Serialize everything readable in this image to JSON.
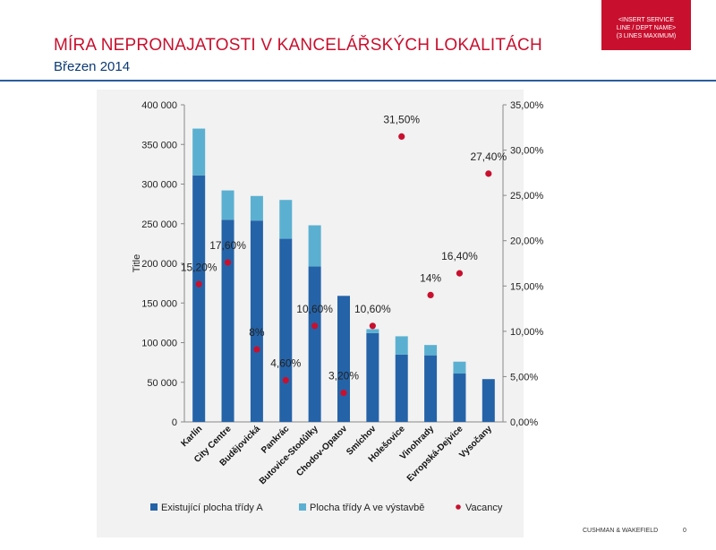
{
  "slide": {
    "title": "MÍRA NEPRONAJATOSTI V KANCELÁŘSKÝCH LOKALITÁCH",
    "subtitle": "Březen 2014",
    "service_box": [
      "<INSERT SERVICE",
      "LINE / DEPT NAME>",
      "(3 LINES MAXIMUM)"
    ],
    "footer_brand": "CUSHMAN & WAKEFIELD",
    "page_number": "0"
  },
  "colors": {
    "title": "#c8102e",
    "subtitle": "#0b3a75",
    "existing": "#2563a8",
    "construction": "#5bb0d1",
    "vacancy": "#c8102e"
  },
  "chart_data": {
    "type": "bar",
    "stacked": true,
    "categories": [
      "Karlín",
      "City Centre",
      "Budějovická",
      "Pankrác",
      "Butovice-Stodůlky",
      "Chodov-Opatov",
      "Smíchov",
      "Holešovice",
      "Vinohrady",
      "Evropská-Dejvice",
      "Vysočany"
    ],
    "series": [
      {
        "name": "Existující plocha třídy A",
        "values": [
          311000,
          255000,
          254000,
          231000,
          196000,
          159000,
          112000,
          85000,
          84000,
          61000,
          54000
        ]
      },
      {
        "name": "Plocha třídy A ve výstavbě",
        "values": [
          59000,
          37000,
          31000,
          49000,
          52000,
          0,
          5000,
          23000,
          13000,
          15000,
          0
        ]
      },
      {
        "name": "Vacancy",
        "axis": "right",
        "kind": "scatter",
        "values": [
          15.2,
          17.6,
          8.0,
          4.6,
          10.6,
          3.2,
          10.6,
          31.5,
          14.0,
          16.4,
          27.4
        ]
      }
    ],
    "vacancy_labels": [
      "15,20%",
      "17,60%",
      "8%",
      "4,60%",
      "10,60%",
      "3,20%",
      "10,60%",
      "31,50%",
      "14%",
      "16,40%",
      "27,40%"
    ],
    "ylabel": "Title",
    "y_left": {
      "min": 0,
      "max": 400000,
      "ticks": [
        "0",
        "50 000",
        "100 000",
        "150 000",
        "200 000",
        "250 000",
        "300 000",
        "350 000",
        "400 000"
      ]
    },
    "y_right": {
      "min": 0,
      "max": 35,
      "ticks": [
        "0,00%",
        "5,00%",
        "10,00%",
        "15,00%",
        "20,00%",
        "25,00%",
        "30,00%",
        "35,00%"
      ]
    },
    "legend": [
      "Existující plocha třídy A",
      "Plocha třídy A ve výstavbě",
      "Vacancy"
    ],
    "legend_position": "bottom",
    "grid": false
  }
}
